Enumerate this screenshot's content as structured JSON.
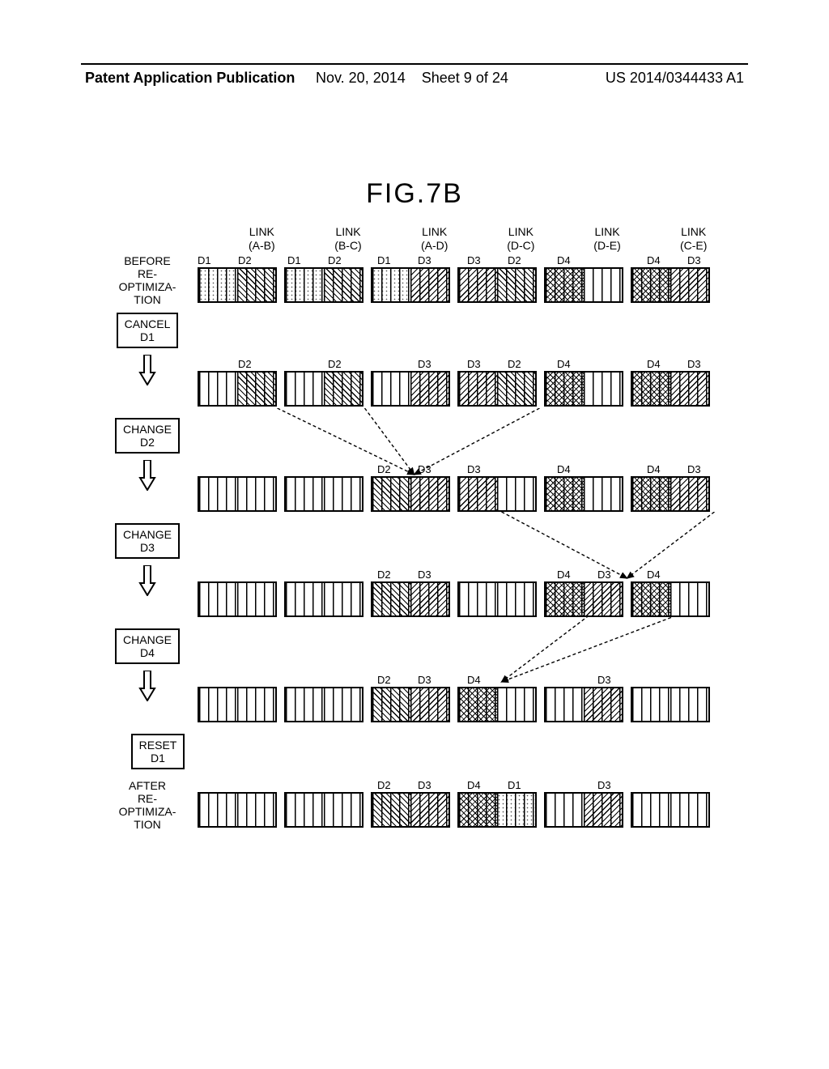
{
  "header": {
    "left": "Patent Application Publication",
    "date": "Nov. 20, 2014",
    "sheet": "Sheet 9 of 24",
    "pubno": "US 2014/0344433 A1"
  },
  "figure": {
    "title": "FIG.7B"
  },
  "links": [
    {
      "name": "LINK",
      "sub": "(A-B)"
    },
    {
      "name": "LINK",
      "sub": "(B-C)"
    },
    {
      "name": "LINK",
      "sub": "(A-D)"
    },
    {
      "name": "LINK",
      "sub": "(D-C)"
    },
    {
      "name": "LINK",
      "sub": "(D-E)"
    },
    {
      "name": "LINK",
      "sub": "(C-E)"
    }
  ],
  "legend": {
    "empty": "pat-empty",
    "D1": "pat-d1",
    "D2": "pat-d2",
    "D3": "pat-d3",
    "D4": "pat-d4"
  },
  "rows": [
    {
      "id": "before",
      "left_kind": "text",
      "left_text": "BEFORE\nRE-\nOPTIMIZA-\nTION",
      "cells": [
        {
          "labels": [
            "D1",
            "D2"
          ],
          "halves": [
            "D1",
            "D2"
          ]
        },
        {
          "labels": [
            "D1",
            "D2"
          ],
          "halves": [
            "D1",
            "D2"
          ]
        },
        {
          "labels": [
            "D1",
            "D3"
          ],
          "halves": [
            "D1",
            "D3"
          ]
        },
        {
          "labels": [
            "D3",
            "D2"
          ],
          "halves": [
            "D3",
            "D2"
          ]
        },
        {
          "labels": [
            "D4",
            ""
          ],
          "halves": [
            "D4",
            "empty"
          ]
        },
        {
          "labels": [
            "D4",
            "D3"
          ],
          "halves": [
            "D4",
            "D3"
          ]
        }
      ]
    },
    {
      "id": "cancel_d1",
      "left_kind": "step",
      "left_text": "CANCEL\nD1",
      "cells": [
        {
          "labels": [
            "",
            "D2"
          ],
          "halves": [
            "empty",
            "D2"
          ]
        },
        {
          "labels": [
            "",
            "D2"
          ],
          "halves": [
            "empty",
            "D2"
          ]
        },
        {
          "labels": [
            "",
            "D3"
          ],
          "halves": [
            "empty",
            "D3"
          ]
        },
        {
          "labels": [
            "D3",
            "D2"
          ],
          "halves": [
            "D3",
            "D2"
          ]
        },
        {
          "labels": [
            "D4",
            ""
          ],
          "halves": [
            "D4",
            "empty"
          ]
        },
        {
          "labels": [
            "D4",
            "D3"
          ],
          "halves": [
            "D4",
            "D3"
          ]
        }
      ],
      "arrows_to_next": [
        {
          "from_link": 0,
          "from_half": 1,
          "to_link": 2,
          "to_half": 0
        },
        {
          "from_link": 1,
          "from_half": 1,
          "to_link": 2,
          "to_half": 0
        },
        {
          "from_link": 3,
          "from_half": 1,
          "to_link": 2,
          "to_half": 0
        }
      ]
    },
    {
      "id": "change_d2",
      "left_kind": "step",
      "left_text": "CHANGE\nD2",
      "cells": [
        {
          "labels": [
            "",
            ""
          ],
          "halves": [
            "empty",
            "empty"
          ]
        },
        {
          "labels": [
            "",
            ""
          ],
          "halves": [
            "empty",
            "empty"
          ]
        },
        {
          "labels": [
            "D2",
            "D3"
          ],
          "halves": [
            "D2",
            "D3"
          ]
        },
        {
          "labels": [
            "D3",
            ""
          ],
          "halves": [
            "D3",
            "empty"
          ]
        },
        {
          "labels": [
            "D4",
            ""
          ],
          "halves": [
            "D4",
            "empty"
          ]
        },
        {
          "labels": [
            "D4",
            "D3"
          ],
          "halves": [
            "D4",
            "D3"
          ]
        }
      ],
      "arrows_to_next": [
        {
          "from_link": 3,
          "from_half": 0,
          "to_link": 4,
          "to_half": 1
        },
        {
          "from_link": 5,
          "from_half": 1,
          "to_link": 4,
          "to_half": 1
        }
      ]
    },
    {
      "id": "change_d3",
      "left_kind": "step",
      "left_text": "CHANGE\nD3",
      "cells": [
        {
          "labels": [
            "",
            ""
          ],
          "halves": [
            "empty",
            "empty"
          ]
        },
        {
          "labels": [
            "",
            ""
          ],
          "halves": [
            "empty",
            "empty"
          ]
        },
        {
          "labels": [
            "D2",
            "D3"
          ],
          "halves": [
            "D2",
            "D3"
          ]
        },
        {
          "labels": [
            "",
            ""
          ],
          "halves": [
            "empty",
            "empty"
          ]
        },
        {
          "labels": [
            "D4",
            "D3"
          ],
          "halves": [
            "D4",
            "D3"
          ]
        },
        {
          "labels": [
            "D4",
            ""
          ],
          "halves": [
            "D4",
            "empty"
          ]
        }
      ],
      "arrows_to_next": [
        {
          "from_link": 4,
          "from_half": 0,
          "to_link": 3,
          "to_half": 0
        },
        {
          "from_link": 5,
          "from_half": 0,
          "to_link": 3,
          "to_half": 0
        }
      ]
    },
    {
      "id": "change_d4",
      "left_kind": "step",
      "left_text": "CHANGE\nD4",
      "cells": [
        {
          "labels": [
            "",
            ""
          ],
          "halves": [
            "empty",
            "empty"
          ]
        },
        {
          "labels": [
            "",
            ""
          ],
          "halves": [
            "empty",
            "empty"
          ]
        },
        {
          "labels": [
            "D2",
            "D3"
          ],
          "halves": [
            "D2",
            "D3"
          ]
        },
        {
          "labels": [
            "D4",
            ""
          ],
          "halves": [
            "D4",
            "empty"
          ]
        },
        {
          "labels": [
            "",
            "D3"
          ],
          "halves": [
            "empty",
            "D3"
          ]
        },
        {
          "labels": [
            "",
            ""
          ],
          "halves": [
            "empty",
            "empty"
          ]
        }
      ]
    },
    {
      "id": "reset_d1",
      "left_kind": "step_noarrow",
      "left_text": "RESET\nD1",
      "cells": null
    },
    {
      "id": "after",
      "left_kind": "text",
      "left_text": "AFTER\nRE-\nOPTIMIZA-\nTION",
      "cells": [
        {
          "labels": [
            "",
            ""
          ],
          "halves": [
            "empty",
            "empty"
          ]
        },
        {
          "labels": [
            "",
            ""
          ],
          "halves": [
            "empty",
            "empty"
          ]
        },
        {
          "labels": [
            "D2",
            "D3"
          ],
          "halves": [
            "D2",
            "D3"
          ]
        },
        {
          "labels": [
            "D4",
            "D1"
          ],
          "halves": [
            "D4",
            "D1"
          ]
        },
        {
          "labels": [
            "",
            "D3"
          ],
          "halves": [
            "empty",
            "D3"
          ]
        },
        {
          "labels": [
            "",
            ""
          ],
          "halves": [
            "empty",
            "empty"
          ]
        }
      ]
    }
  ],
  "layout": {
    "block_w": 94,
    "block_gap": 9,
    "half_w": 47,
    "row_gap_with_cells": 128,
    "cells_offset_in_steprow": 56,
    "arrow_color": "#000",
    "dash": "4,3"
  }
}
